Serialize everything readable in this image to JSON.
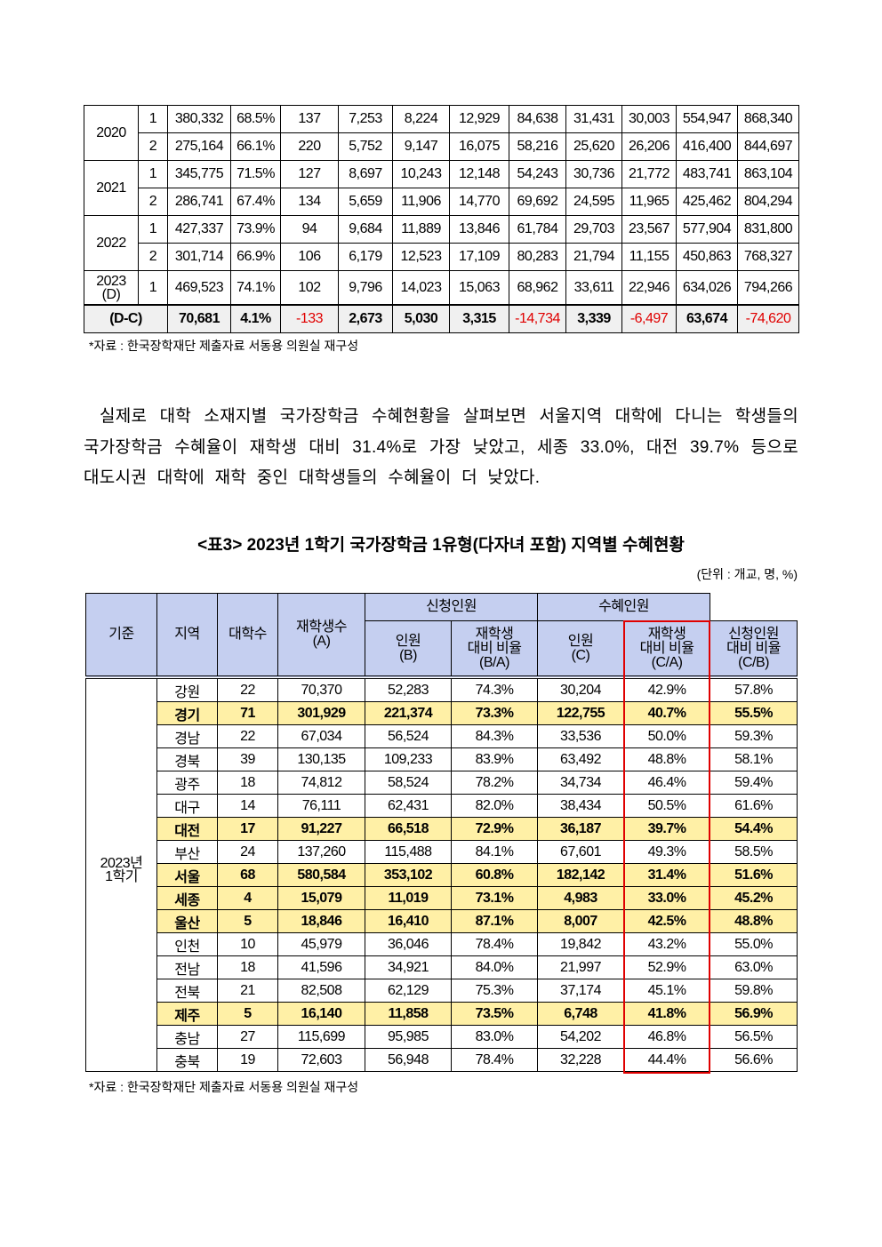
{
  "table1": {
    "rows": [
      {
        "year": "2020",
        "sem": "1",
        "vals": [
          "380,332",
          "68.5%",
          "137",
          "7,253",
          "8,224",
          "12,929",
          "84,638",
          "31,431",
          "30,003",
          "554,947",
          "868,340"
        ]
      },
      {
        "year": "",
        "sem": "2",
        "vals": [
          "275,164",
          "66.1%",
          "220",
          "5,752",
          "9,147",
          "16,075",
          "58,216",
          "25,620",
          "26,206",
          "416,400",
          "844,697"
        ]
      },
      {
        "year": "2021",
        "sem": "1",
        "vals": [
          "345,775",
          "71.5%",
          "127",
          "8,697",
          "10,243",
          "12,148",
          "54,243",
          "30,736",
          "21,772",
          "483,741",
          "863,104"
        ]
      },
      {
        "year": "",
        "sem": "2",
        "vals": [
          "286,741",
          "67.4%",
          "134",
          "5,659",
          "11,906",
          "14,770",
          "69,692",
          "24,595",
          "11,965",
          "425,462",
          "804,294"
        ]
      },
      {
        "year": "2022",
        "sem": "1",
        "vals": [
          "427,337",
          "73.9%",
          "94",
          "9,684",
          "11,889",
          "13,846",
          "61,784",
          "29,703",
          "23,567",
          "577,904",
          "831,800"
        ]
      },
      {
        "year": "",
        "sem": "2",
        "vals": [
          "301,714",
          "66.9%",
          "106",
          "6,179",
          "12,523",
          "17,109",
          "80,283",
          "21,794",
          "11,155",
          "450,863",
          "768,327"
        ]
      },
      {
        "year": "2023\n(D)",
        "sem": "1",
        "vals": [
          "469,523",
          "74.1%",
          "102",
          "9,796",
          "14,023",
          "15,063",
          "68,962",
          "33,611",
          "22,946",
          "634,026",
          "794,266"
        ]
      }
    ],
    "diff": {
      "label": "(D-C)",
      "vals": [
        "70,681",
        "4.1%",
        "-133",
        "2,673",
        "5,030",
        "3,315",
        "-14,734",
        "3,339",
        "-6,497",
        "63,674",
        "-74,620"
      ]
    },
    "negative_color": "#e00000"
  },
  "source_note1": "*자료 : 한국장학재단 제출자료 서동용 의원실 재구성",
  "paragraph": "실제로 대학 소재지별 국가장학금 수혜현황을 살펴보면 서울지역 대학에 다니는 학생들의 국가장학금 수혜율이 재학생 대비 31.4%로 가장 낮았고, 세종 33.0%, 대전 39.7% 등으로 대도시권 대학에 재학 중인 대학생들의 수혜율이 더 낮았다.",
  "table2": {
    "title": "<표3> 2023년 1학기 국가장학금 1유형(다자녀 포함) 지역별 수혜현황",
    "unit": "(단위 : 개교, 명, %)",
    "headers": {
      "basis": "기준",
      "region": "지역",
      "univ_count": "대학수",
      "enrolled": "재학생수\n(A)",
      "applied": "신청인원",
      "applied_count": "인원\n(B)",
      "applied_ratio": "재학생\n대비 비율\n(B/A)",
      "benefit": "수혜인원",
      "benefit_count": "인원\n(C)",
      "benefit_ratio_enrolled": "재학생\n대비 비율\n(C/A)",
      "benefit_ratio_applied": "신청인원\n대비 비율\n(C/B)"
    },
    "basis_value": "2023년\n1학기",
    "highlight_color": "#fff0a6",
    "header_color": "#c5cff0",
    "rows": [
      {
        "r": "강원",
        "v": [
          "22",
          "70,370",
          "52,283",
          "74.3%",
          "30,204",
          "42.9%",
          "57.8%"
        ],
        "hl": false
      },
      {
        "r": "경기",
        "v": [
          "71",
          "301,929",
          "221,374",
          "73.3%",
          "122,755",
          "40.7%",
          "55.5%"
        ],
        "hl": true
      },
      {
        "r": "경남",
        "v": [
          "22",
          "67,034",
          "56,524",
          "84.3%",
          "33,536",
          "50.0%",
          "59.3%"
        ],
        "hl": false
      },
      {
        "r": "경북",
        "v": [
          "39",
          "130,135",
          "109,233",
          "83.9%",
          "63,492",
          "48.8%",
          "58.1%"
        ],
        "hl": false
      },
      {
        "r": "광주",
        "v": [
          "18",
          "74,812",
          "58,524",
          "78.2%",
          "34,734",
          "46.4%",
          "59.4%"
        ],
        "hl": false
      },
      {
        "r": "대구",
        "v": [
          "14",
          "76,111",
          "62,431",
          "82.0%",
          "38,434",
          "50.5%",
          "61.6%"
        ],
        "hl": false
      },
      {
        "r": "대전",
        "v": [
          "17",
          "91,227",
          "66,518",
          "72.9%",
          "36,187",
          "39.7%",
          "54.4%"
        ],
        "hl": true
      },
      {
        "r": "부산",
        "v": [
          "24",
          "137,260",
          "115,488",
          "84.1%",
          "67,601",
          "49.3%",
          "58.5%"
        ],
        "hl": false
      },
      {
        "r": "서울",
        "v": [
          "68",
          "580,584",
          "353,102",
          "60.8%",
          "182,142",
          "31.4%",
          "51.6%"
        ],
        "hl": true
      },
      {
        "r": "세종",
        "v": [
          "4",
          "15,079",
          "11,019",
          "73.1%",
          "4,983",
          "33.0%",
          "45.2%"
        ],
        "hl": true
      },
      {
        "r": "울산",
        "v": [
          "5",
          "18,846",
          "16,410",
          "87.1%",
          "8,007",
          "42.5%",
          "48.8%"
        ],
        "hl": true
      },
      {
        "r": "인천",
        "v": [
          "10",
          "45,979",
          "36,046",
          "78.4%",
          "19,842",
          "43.2%",
          "55.0%"
        ],
        "hl": false
      },
      {
        "r": "전남",
        "v": [
          "18",
          "41,596",
          "34,921",
          "84.0%",
          "21,997",
          "52.9%",
          "63.0%"
        ],
        "hl": false
      },
      {
        "r": "전북",
        "v": [
          "21",
          "82,508",
          "62,129",
          "75.3%",
          "37,174",
          "45.1%",
          "59.8%"
        ],
        "hl": false
      },
      {
        "r": "제주",
        "v": [
          "5",
          "16,140",
          "11,858",
          "73.5%",
          "6,748",
          "41.8%",
          "56.9%"
        ],
        "hl": true
      },
      {
        "r": "충남",
        "v": [
          "27",
          "115,699",
          "95,985",
          "83.0%",
          "54,202",
          "46.8%",
          "56.5%"
        ],
        "hl": false
      },
      {
        "r": "충북",
        "v": [
          "19",
          "72,603",
          "56,948",
          "78.4%",
          "32,228",
          "44.4%",
          "56.6%"
        ],
        "hl": false
      }
    ]
  },
  "source_note2": "*자료 : 한국장학재단 제출자료 서동용 의원실 재구성"
}
